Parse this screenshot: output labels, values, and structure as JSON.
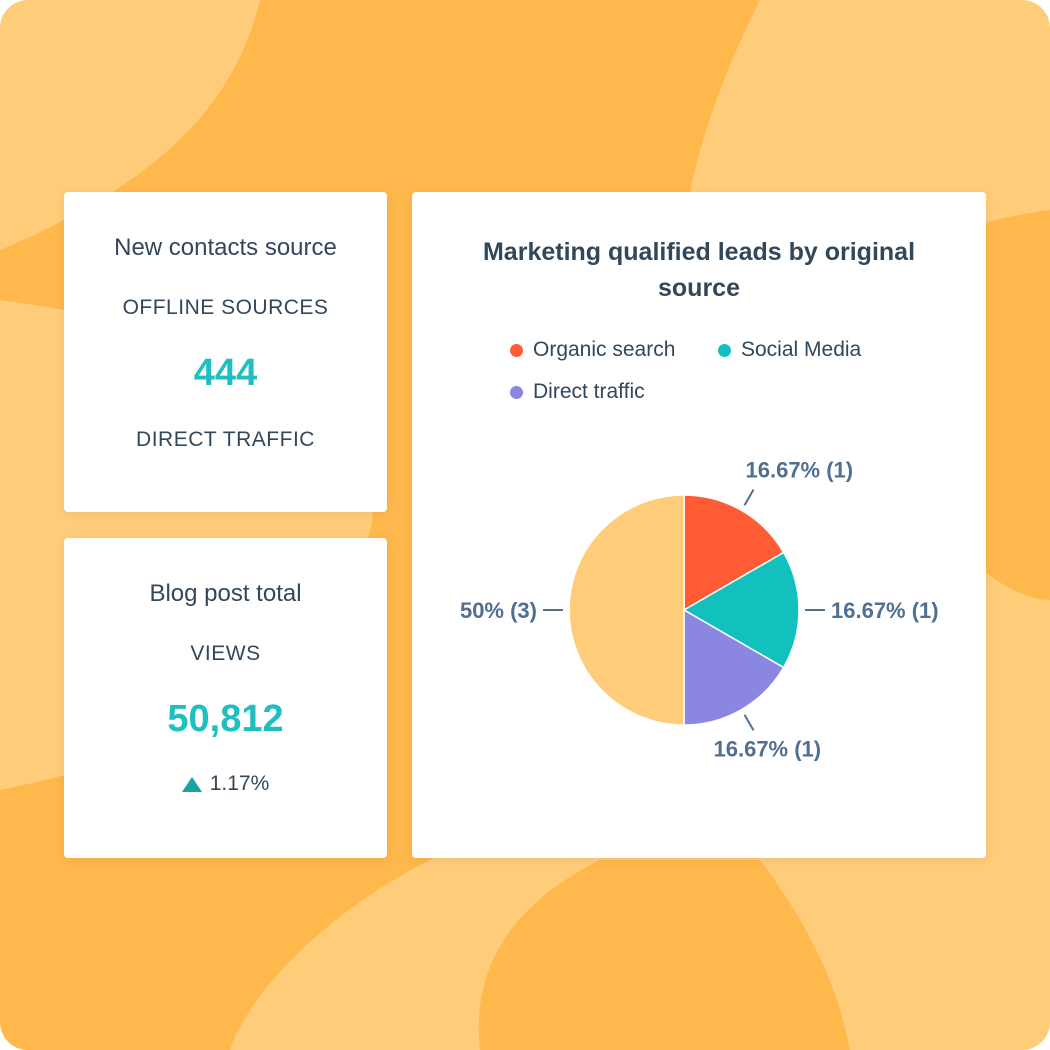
{
  "colors": {
    "accent": "#1ebfbe",
    "text": "#33475b",
    "organic": "#ff5c35",
    "social": "#12c0be",
    "direct": "#8b87e0",
    "other": "#ffcd7a"
  },
  "contacts_card": {
    "title": "New contacts source",
    "subtitle": "OFFLINE SOURCES",
    "value": "444",
    "breakdown": "DIRECT TRAFFIC"
  },
  "blog_card": {
    "title": "Blog post total",
    "subtitle": "VIEWS",
    "value": "50,812",
    "trend_icon": "triangle-up-icon",
    "trend": "1.17%"
  },
  "chart_data": {
    "type": "pie",
    "title": "Marketing qualified leads by original source",
    "legend": [
      "Organic search",
      "Social Media",
      "Direct traffic"
    ],
    "slices": [
      {
        "name": "Organic search",
        "value": 1,
        "label": "16.67% (1)",
        "color": "#ff5c35"
      },
      {
        "name": "Social Media",
        "value": 1,
        "label": "16.67% (1)",
        "color": "#12c0be"
      },
      {
        "name": "Direct traffic",
        "value": 1,
        "label": "16.67% (1)",
        "color": "#8b87e0"
      },
      {
        "name": "",
        "value": 3,
        "label": "50% (3)",
        "color": "#ffcd7a"
      }
    ]
  }
}
